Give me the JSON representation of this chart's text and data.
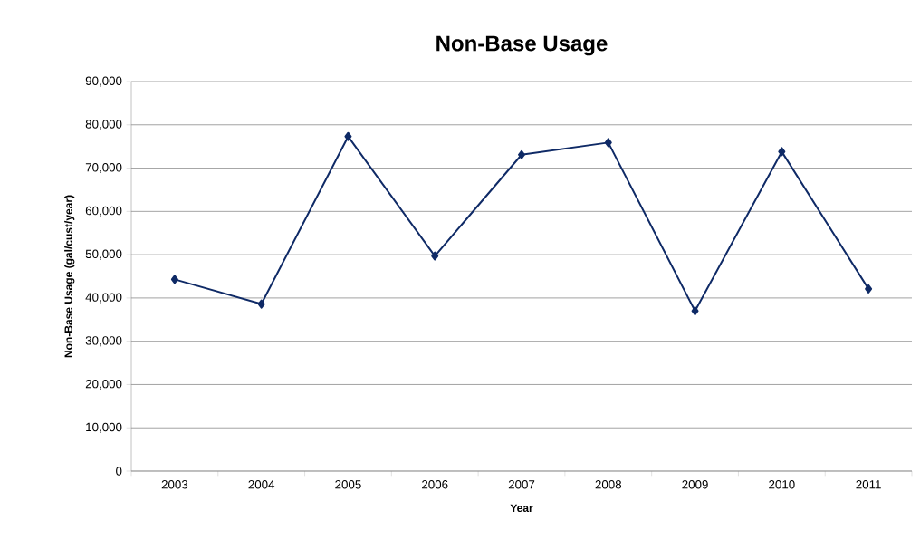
{
  "chart_data": {
    "type": "line",
    "title": "Non-Base Usage",
    "xlabel": "Year",
    "ylabel": "Non-Base Usage (gal/cust/year)",
    "categories": [
      "2003",
      "2004",
      "2005",
      "2006",
      "2007",
      "2008",
      "2009",
      "2010",
      "2011"
    ],
    "series": [
      {
        "color": "#0f2a66",
        "values": [
          44300,
          38600,
          77300,
          49700,
          73100,
          75900,
          37000,
          73800,
          42100
        ]
      }
    ],
    "ylim": [
      0,
      90000
    ],
    "yticks": [
      {
        "value": 0,
        "label": "0"
      },
      {
        "value": 10000,
        "label": "10,000"
      },
      {
        "value": 20000,
        "label": "20,000"
      },
      {
        "value": 30000,
        "label": "30,000"
      },
      {
        "value": 40000,
        "label": "40,000"
      },
      {
        "value": 50000,
        "label": "50,000"
      },
      {
        "value": 60000,
        "label": "60,000"
      },
      {
        "value": 70000,
        "label": "70,000"
      },
      {
        "value": 80000,
        "label": "80,000"
      },
      {
        "value": 90000,
        "label": "90,000"
      }
    ],
    "grid": "y",
    "marker": "diamond",
    "line_style": "solid"
  }
}
